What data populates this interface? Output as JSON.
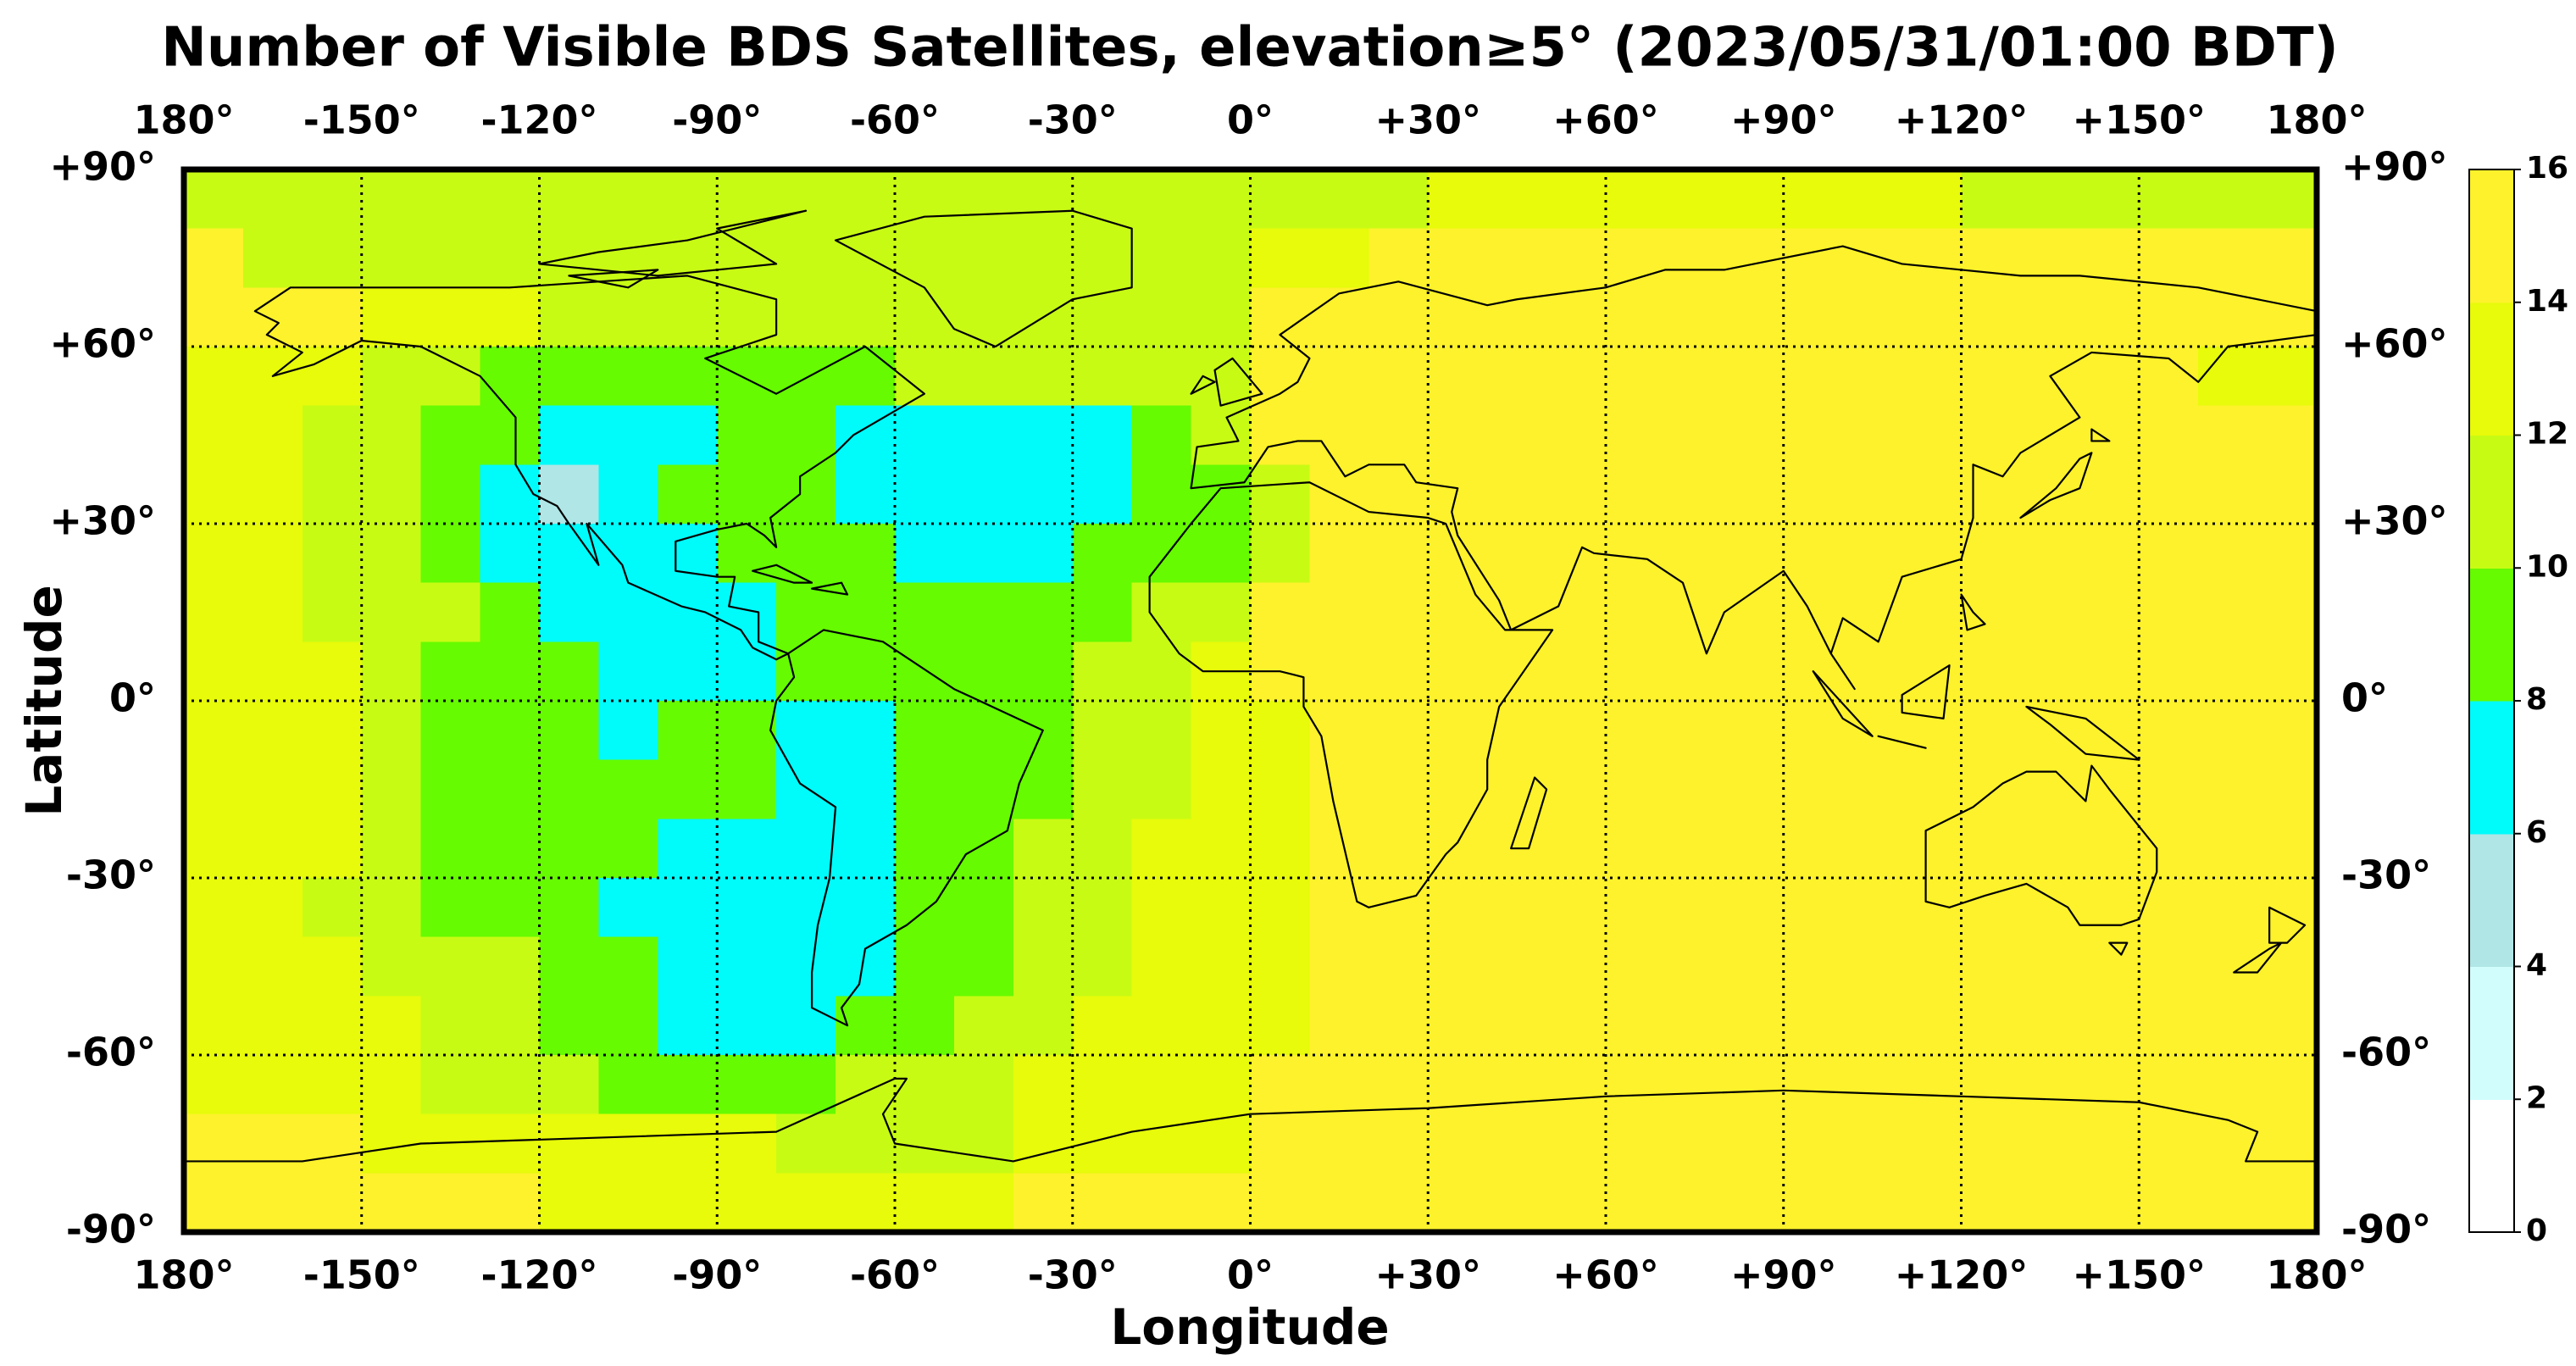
{
  "chart_data": {
    "type": "heatmap",
    "title": "Number of Visible BDS Satellites, elevation≥5° (2023/05/31/01:00 BDT)",
    "xlabel": "Longitude",
    "ylabel": "Latitude",
    "xlim": [
      -180,
      180
    ],
    "ylim": [
      -90,
      90
    ],
    "xticks": [
      {
        "value": -180,
        "label": "180°"
      },
      {
        "value": -150,
        "label": "-150°"
      },
      {
        "value": -120,
        "label": "-120°"
      },
      {
        "value": -90,
        "label": "-90°"
      },
      {
        "value": -60,
        "label": "-60°"
      },
      {
        "value": -30,
        "label": "-30°"
      },
      {
        "value": 0,
        "label": "0°"
      },
      {
        "value": 30,
        "label": "+30°"
      },
      {
        "value": 60,
        "label": "+60°"
      },
      {
        "value": 90,
        "label": "+90°"
      },
      {
        "value": 120,
        "label": "+120°"
      },
      {
        "value": 150,
        "label": "+150°"
      },
      {
        "value": 180,
        "label": "180°"
      }
    ],
    "yticks": [
      {
        "value": -90,
        "label": "-90°"
      },
      {
        "value": -60,
        "label": "-60°"
      },
      {
        "value": -30,
        "label": "-30°"
      },
      {
        "value": 0,
        "label": "0°"
      },
      {
        "value": 30,
        "label": "+30°"
      },
      {
        "value": 60,
        "label": "+60°"
      },
      {
        "value": 90,
        "label": "+90°"
      }
    ],
    "grid": true,
    "colorbar": {
      "ticks": [
        0,
        2,
        4,
        6,
        8,
        10,
        12,
        14,
        16
      ],
      "colors": [
        "#ffffff",
        "#d2fdfd",
        "#b0e6e6",
        "#00fbfb",
        "#66fb00",
        "#c8fb14",
        "#e7fb0a",
        "#fdf22b"
      ]
    },
    "z": [
      [
        11,
        11,
        11,
        11,
        11,
        11,
        11,
        11,
        11,
        11,
        11,
        11,
        11,
        11,
        11,
        11,
        11,
        11,
        11,
        11,
        11,
        13,
        13,
        13,
        13,
        13,
        13,
        13,
        13,
        13,
        11,
        11,
        11,
        11,
        11,
        11
      ],
      [
        15,
        11,
        11,
        11,
        11,
        11,
        11,
        11,
        11,
        11,
        11,
        11,
        11,
        11,
        11,
        11,
        11,
        11,
        13,
        13,
        15,
        15,
        15,
        15,
        15,
        15,
        15,
        15,
        15,
        15,
        15,
        15,
        15,
        15,
        15,
        15
      ],
      [
        15,
        15,
        15,
        13,
        13,
        13,
        11,
        11,
        11,
        11,
        11,
        11,
        11,
        11,
        11,
        11,
        11,
        11,
        15,
        15,
        15,
        15,
        15,
        15,
        15,
        15,
        15,
        15,
        15,
        15,
        15,
        15,
        15,
        15,
        15,
        15
      ],
      [
        13,
        13,
        13,
        11,
        11,
        9,
        9,
        9,
        9,
        9,
        9,
        9,
        11,
        11,
        11,
        11,
        11,
        11,
        15,
        15,
        15,
        15,
        15,
        15,
        15,
        15,
        15,
        15,
        15,
        15,
        15,
        15,
        15,
        15,
        13,
        13
      ],
      [
        13,
        13,
        11,
        11,
        9,
        9,
        7,
        7,
        7,
        9,
        9,
        7,
        7,
        7,
        7,
        7,
        9,
        11,
        15,
        15,
        15,
        15,
        15,
        15,
        15,
        15,
        15,
        15,
        15,
        15,
        15,
        15,
        15,
        15,
        15,
        15
      ],
      [
        13,
        13,
        11,
        11,
        9,
        7,
        5,
        7,
        9,
        9,
        9,
        7,
        7,
        7,
        7,
        7,
        9,
        9,
        11,
        15,
        15,
        15,
        15,
        15,
        15,
        15,
        15,
        15,
        15,
        15,
        15,
        15,
        15,
        15,
        15,
        15
      ],
      [
        13,
        13,
        11,
        11,
        9,
        7,
        7,
        7,
        7,
        9,
        9,
        9,
        7,
        7,
        7,
        9,
        9,
        9,
        11,
        15,
        15,
        15,
        15,
        15,
        15,
        15,
        15,
        15,
        15,
        15,
        15,
        15,
        15,
        15,
        15,
        15
      ],
      [
        13,
        13,
        11,
        11,
        11,
        9,
        7,
        7,
        7,
        7,
        9,
        9,
        9,
        9,
        9,
        9,
        11,
        11,
        15,
        15,
        15,
        15,
        15,
        15,
        15,
        15,
        15,
        15,
        15,
        15,
        15,
        15,
        15,
        15,
        15,
        15
      ],
      [
        13,
        13,
        13,
        11,
        9,
        9,
        9,
        7,
        7,
        7,
        9,
        9,
        9,
        9,
        9,
        11,
        11,
        13,
        15,
        15,
        15,
        15,
        15,
        15,
        15,
        15,
        15,
        15,
        15,
        15,
        15,
        15,
        15,
        15,
        15,
        15
      ],
      [
        13,
        13,
        13,
        11,
        9,
        9,
        9,
        7,
        9,
        9,
        7,
        7,
        9,
        9,
        9,
        11,
        11,
        13,
        13,
        15,
        15,
        15,
        15,
        15,
        15,
        15,
        15,
        15,
        15,
        15,
        15,
        15,
        15,
        15,
        15,
        15
      ],
      [
        13,
        13,
        13,
        11,
        9,
        9,
        9,
        9,
        9,
        9,
        7,
        7,
        9,
        9,
        9,
        11,
        11,
        13,
        13,
        15,
        15,
        15,
        15,
        15,
        15,
        15,
        15,
        15,
        15,
        15,
        15,
        15,
        15,
        15,
        15,
        15
      ],
      [
        13,
        13,
        13,
        11,
        9,
        9,
        9,
        9,
        7,
        7,
        7,
        7,
        9,
        9,
        11,
        11,
        13,
        13,
        13,
        15,
        15,
        15,
        15,
        15,
        15,
        15,
        15,
        15,
        15,
        15,
        15,
        15,
        15,
        15,
        15,
        15
      ],
      [
        13,
        13,
        11,
        11,
        9,
        9,
        9,
        7,
        7,
        7,
        7,
        7,
        9,
        9,
        11,
        11,
        13,
        13,
        13,
        15,
        15,
        15,
        15,
        15,
        15,
        15,
        15,
        15,
        15,
        15,
        15,
        15,
        15,
        15,
        15,
        15
      ],
      [
        13,
        13,
        13,
        11,
        11,
        11,
        9,
        9,
        7,
        7,
        7,
        7,
        9,
        9,
        11,
        11,
        13,
        13,
        13,
        15,
        15,
        15,
        15,
        15,
        15,
        15,
        15,
        15,
        15,
        15,
        15,
        15,
        15,
        15,
        15,
        15
      ],
      [
        13,
        13,
        13,
        13,
        11,
        11,
        9,
        9,
        7,
        7,
        7,
        9,
        9,
        11,
        11,
        13,
        13,
        13,
        13,
        15,
        15,
        15,
        15,
        15,
        15,
        15,
        15,
        15,
        15,
        15,
        15,
        15,
        15,
        15,
        15,
        15
      ],
      [
        13,
        13,
        13,
        13,
        11,
        11,
        11,
        9,
        9,
        9,
        9,
        11,
        11,
        11,
        13,
        13,
        13,
        13,
        15,
        15,
        15,
        15,
        15,
        15,
        15,
        15,
        15,
        15,
        15,
        15,
        15,
        15,
        15,
        15,
        15,
        15
      ],
      [
        15,
        15,
        15,
        13,
        13,
        13,
        13,
        13,
        13,
        13,
        11,
        11,
        11,
        11,
        13,
        13,
        13,
        13,
        15,
        15,
        15,
        15,
        15,
        15,
        15,
        15,
        15,
        15,
        15,
        15,
        15,
        15,
        15,
        15,
        15,
        15
      ],
      [
        15,
        15,
        15,
        15,
        15,
        15,
        13,
        13,
        13,
        13,
        13,
        13,
        13,
        13,
        15,
        15,
        15,
        15,
        15,
        15,
        15,
        15,
        15,
        15,
        15,
        15,
        15,
        15,
        15,
        15,
        15,
        15,
        15,
        15,
        15,
        15
      ]
    ]
  }
}
